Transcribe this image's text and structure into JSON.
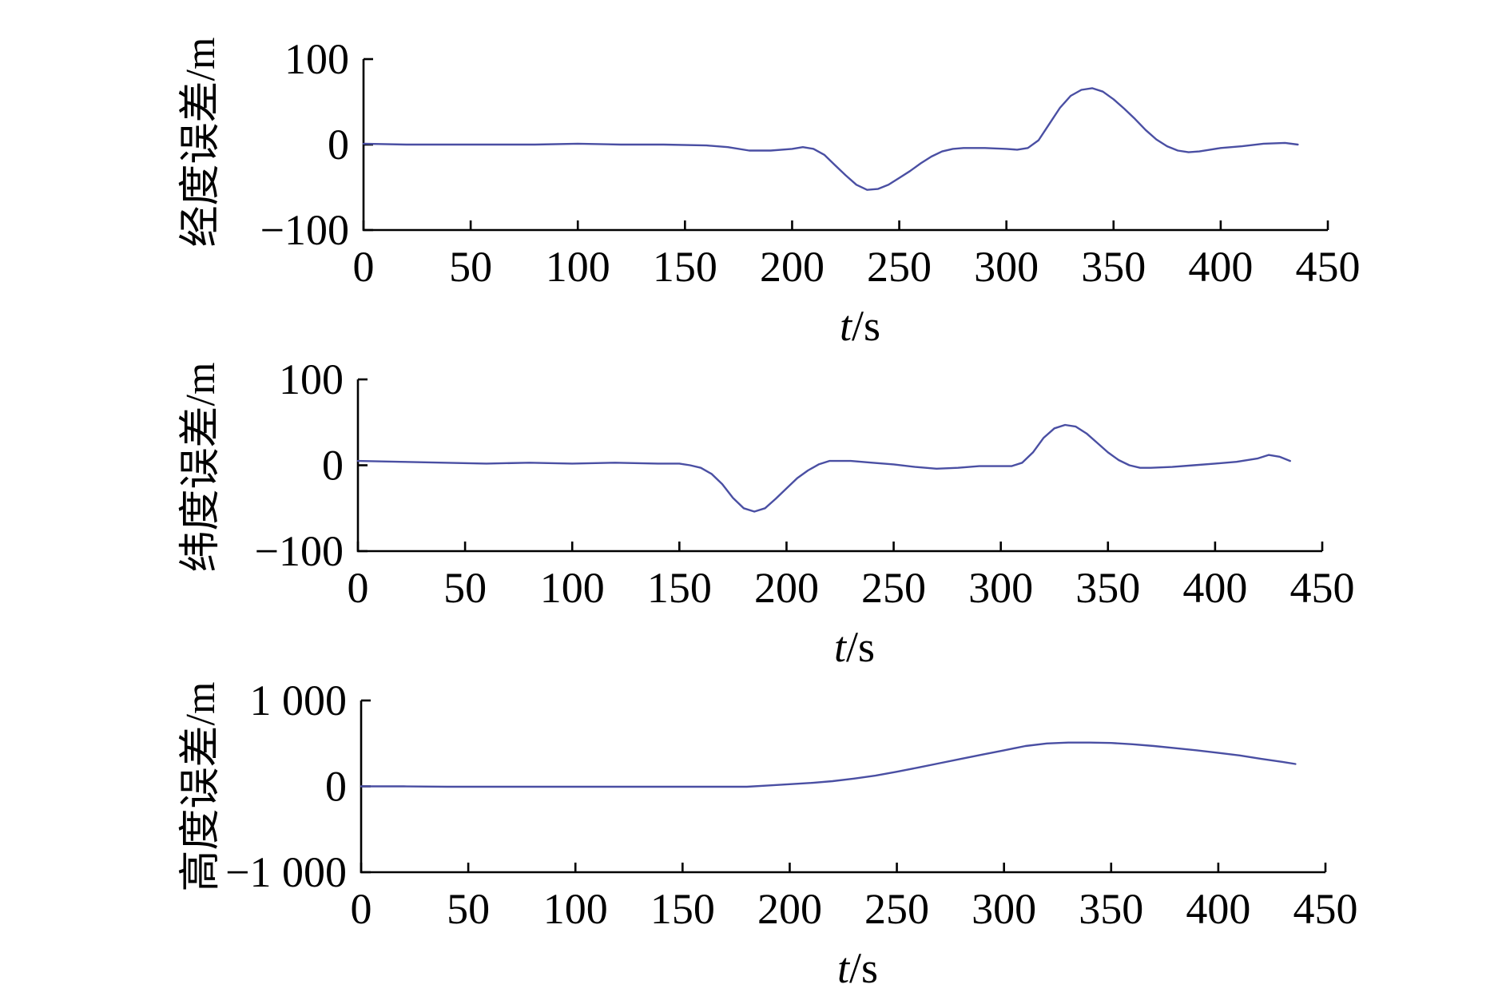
{
  "chart_data": [
    {
      "type": "line",
      "ylabel": "经度误差/m",
      "xlabel_var": "t",
      "xlabel_unit": "/s",
      "xlim": [
        0,
        450
      ],
      "ylim": [
        -100,
        100
      ],
      "xticks": [
        0,
        50,
        100,
        150,
        200,
        250,
        300,
        350,
        400,
        450
      ],
      "xtick_labels": [
        "0",
        "50",
        "100",
        "150",
        "200",
        "250",
        "300",
        "350",
        "400",
        "450"
      ],
      "yticks": [
        -100,
        0,
        100
      ],
      "ytick_labels": [
        "−100",
        "0",
        "100"
      ],
      "grid": false,
      "color": "#4a4fa3",
      "series": [
        {
          "x": [
            0,
            20,
            40,
            60,
            80,
            100,
            120,
            140,
            160,
            170,
            180,
            190,
            200,
            205,
            210,
            215,
            220,
            225,
            230,
            235,
            240,
            245,
            250,
            255,
            260,
            265,
            270,
            275,
            280,
            290,
            300,
            305,
            310,
            315,
            320,
            325,
            330,
            335,
            340,
            345,
            350,
            355,
            360,
            365,
            370,
            375,
            380,
            385,
            390,
            395,
            400,
            410,
            420,
            430,
            436
          ],
          "y": [
            1,
            0,
            0,
            0,
            0,
            1,
            0,
            0,
            -1,
            -3,
            -7,
            -7,
            -5,
            -3,
            -5,
            -12,
            -24,
            -36,
            -47,
            -53,
            -52,
            -47,
            -39,
            -31,
            -22,
            -14,
            -8,
            -5,
            -4,
            -4,
            -5,
            -6,
            -4,
            5,
            24,
            43,
            57,
            64,
            66,
            62,
            53,
            42,
            30,
            17,
            6,
            -2,
            -7,
            -9,
            -8,
            -6,
            -4,
            -2,
            1,
            2,
            0
          ]
        }
      ]
    },
    {
      "type": "line",
      "ylabel": "纬度误差/m",
      "xlabel_var": "t",
      "xlabel_unit": "/s",
      "xlim": [
        0,
        450
      ],
      "ylim": [
        -100,
        100
      ],
      "xticks": [
        0,
        50,
        100,
        150,
        200,
        250,
        300,
        350,
        400,
        450
      ],
      "xtick_labels": [
        "0",
        "50",
        "100",
        "150",
        "200",
        "250",
        "300",
        "350",
        "400",
        "450"
      ],
      "yticks": [
        -100,
        0,
        100
      ],
      "ytick_labels": [
        "−100",
        "0",
        "100"
      ],
      "grid": false,
      "color": "#4a4fa3",
      "series": [
        {
          "x": [
            0,
            20,
            40,
            60,
            80,
            100,
            120,
            140,
            150,
            155,
            160,
            165,
            170,
            175,
            180,
            185,
            190,
            195,
            200,
            205,
            210,
            215,
            220,
            230,
            240,
            250,
            260,
            270,
            280,
            290,
            300,
            305,
            310,
            315,
            320,
            325,
            330,
            335,
            340,
            345,
            350,
            355,
            360,
            365,
            370,
            380,
            390,
            400,
            410,
            420,
            425,
            430,
            435
          ],
          "y": [
            5,
            4,
            3,
            2,
            3,
            2,
            3,
            2,
            2,
            0,
            -3,
            -10,
            -22,
            -38,
            -50,
            -54,
            -50,
            -39,
            -27,
            -15,
            -6,
            1,
            5,
            5,
            3,
            1,
            -2,
            -4,
            -3,
            -1,
            -1,
            -1,
            3,
            15,
            32,
            43,
            47,
            45,
            37,
            26,
            15,
            6,
            0,
            -3,
            -3,
            -2,
            0,
            2,
            4,
            8,
            12,
            10,
            5
          ]
        }
      ]
    },
    {
      "type": "line",
      "ylabel": "高度误差/m",
      "xlabel_var": "t",
      "xlabel_unit": "/s",
      "xlim": [
        0,
        450
      ],
      "ylim": [
        -1000,
        1000
      ],
      "xticks": [
        0,
        50,
        100,
        150,
        200,
        250,
        300,
        350,
        400,
        450
      ],
      "xtick_labels": [
        "0",
        "50",
        "100",
        "150",
        "200",
        "250",
        "300",
        "350",
        "400",
        "450"
      ],
      "yticks": [
        -1000,
        0,
        1000
      ],
      "ytick_labels": [
        "−1 000",
        "0",
        "1 000"
      ],
      "grid": false,
      "color": "#4a4fa3",
      "series": [
        {
          "x": [
            0,
            20,
            40,
            60,
            80,
            100,
            120,
            140,
            160,
            180,
            190,
            200,
            210,
            220,
            230,
            240,
            250,
            260,
            270,
            280,
            290,
            300,
            310,
            320,
            330,
            340,
            350,
            360,
            370,
            380,
            390,
            400,
            410,
            420,
            430,
            436
          ],
          "y": [
            0,
            0,
            -5,
            -5,
            -5,
            -5,
            -5,
            -5,
            -5,
            -5,
            10,
            25,
            40,
            60,
            90,
            125,
            170,
            220,
            270,
            320,
            370,
            420,
            470,
            500,
            510,
            510,
            505,
            490,
            470,
            445,
            420,
            390,
            360,
            320,
            285,
            260
          ]
        }
      ]
    }
  ]
}
